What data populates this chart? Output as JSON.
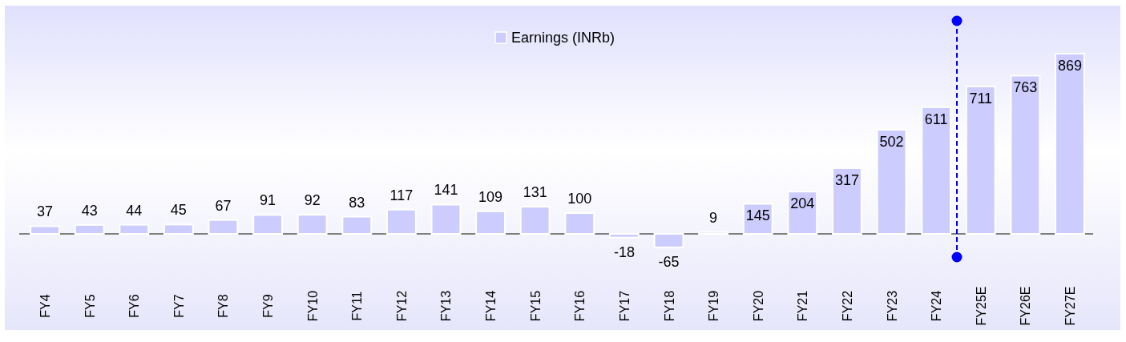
{
  "chart_data": {
    "type": "bar",
    "categories": [
      "FY4",
      "FY5",
      "FY6",
      "FY7",
      "FY8",
      "FY9",
      "FY10",
      "FY11",
      "FY12",
      "FY13",
      "FY14",
      "FY15",
      "FY16",
      "FY17",
      "FY18",
      "FY19",
      "FY20",
      "FY21",
      "FY22",
      "FY23",
      "FY24",
      "FY25E",
      "FY26E",
      "FY27E"
    ],
    "series": [
      {
        "name": "Earnings (INRb)",
        "color": "#ccccff",
        "values": [
          37,
          43,
          44,
          45,
          67,
          91,
          92,
          83,
          117,
          141,
          109,
          131,
          100,
          -18,
          -65,
          9,
          145,
          204,
          317,
          502,
          611,
          711,
          763,
          869
        ]
      }
    ],
    "data_labels": true,
    "legend": "top"
  }
}
